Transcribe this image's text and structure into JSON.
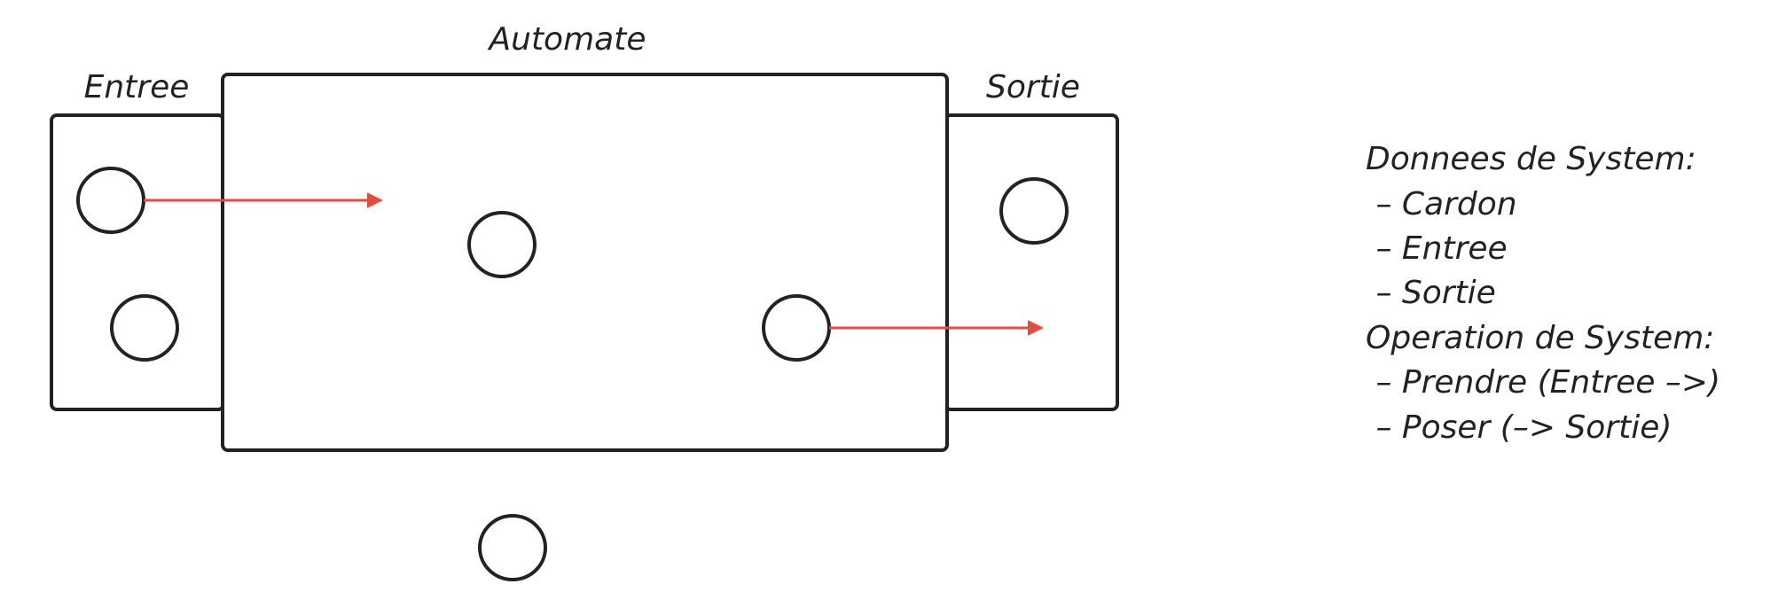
{
  "diagram": {
    "labels": {
      "automate": "Automate",
      "entree": "Entree",
      "sortie": "Sortie"
    },
    "arrow_color": "#e14d3f",
    "stroke_color": "#222222"
  },
  "info_panel": {
    "lines": [
      "Donnees de System:",
      " – Cardon",
      " – Entree",
      " – Sortie",
      "Operation de System:",
      " – Prendre (Entree –>)",
      " – Poser (–> Sortie)"
    ]
  }
}
